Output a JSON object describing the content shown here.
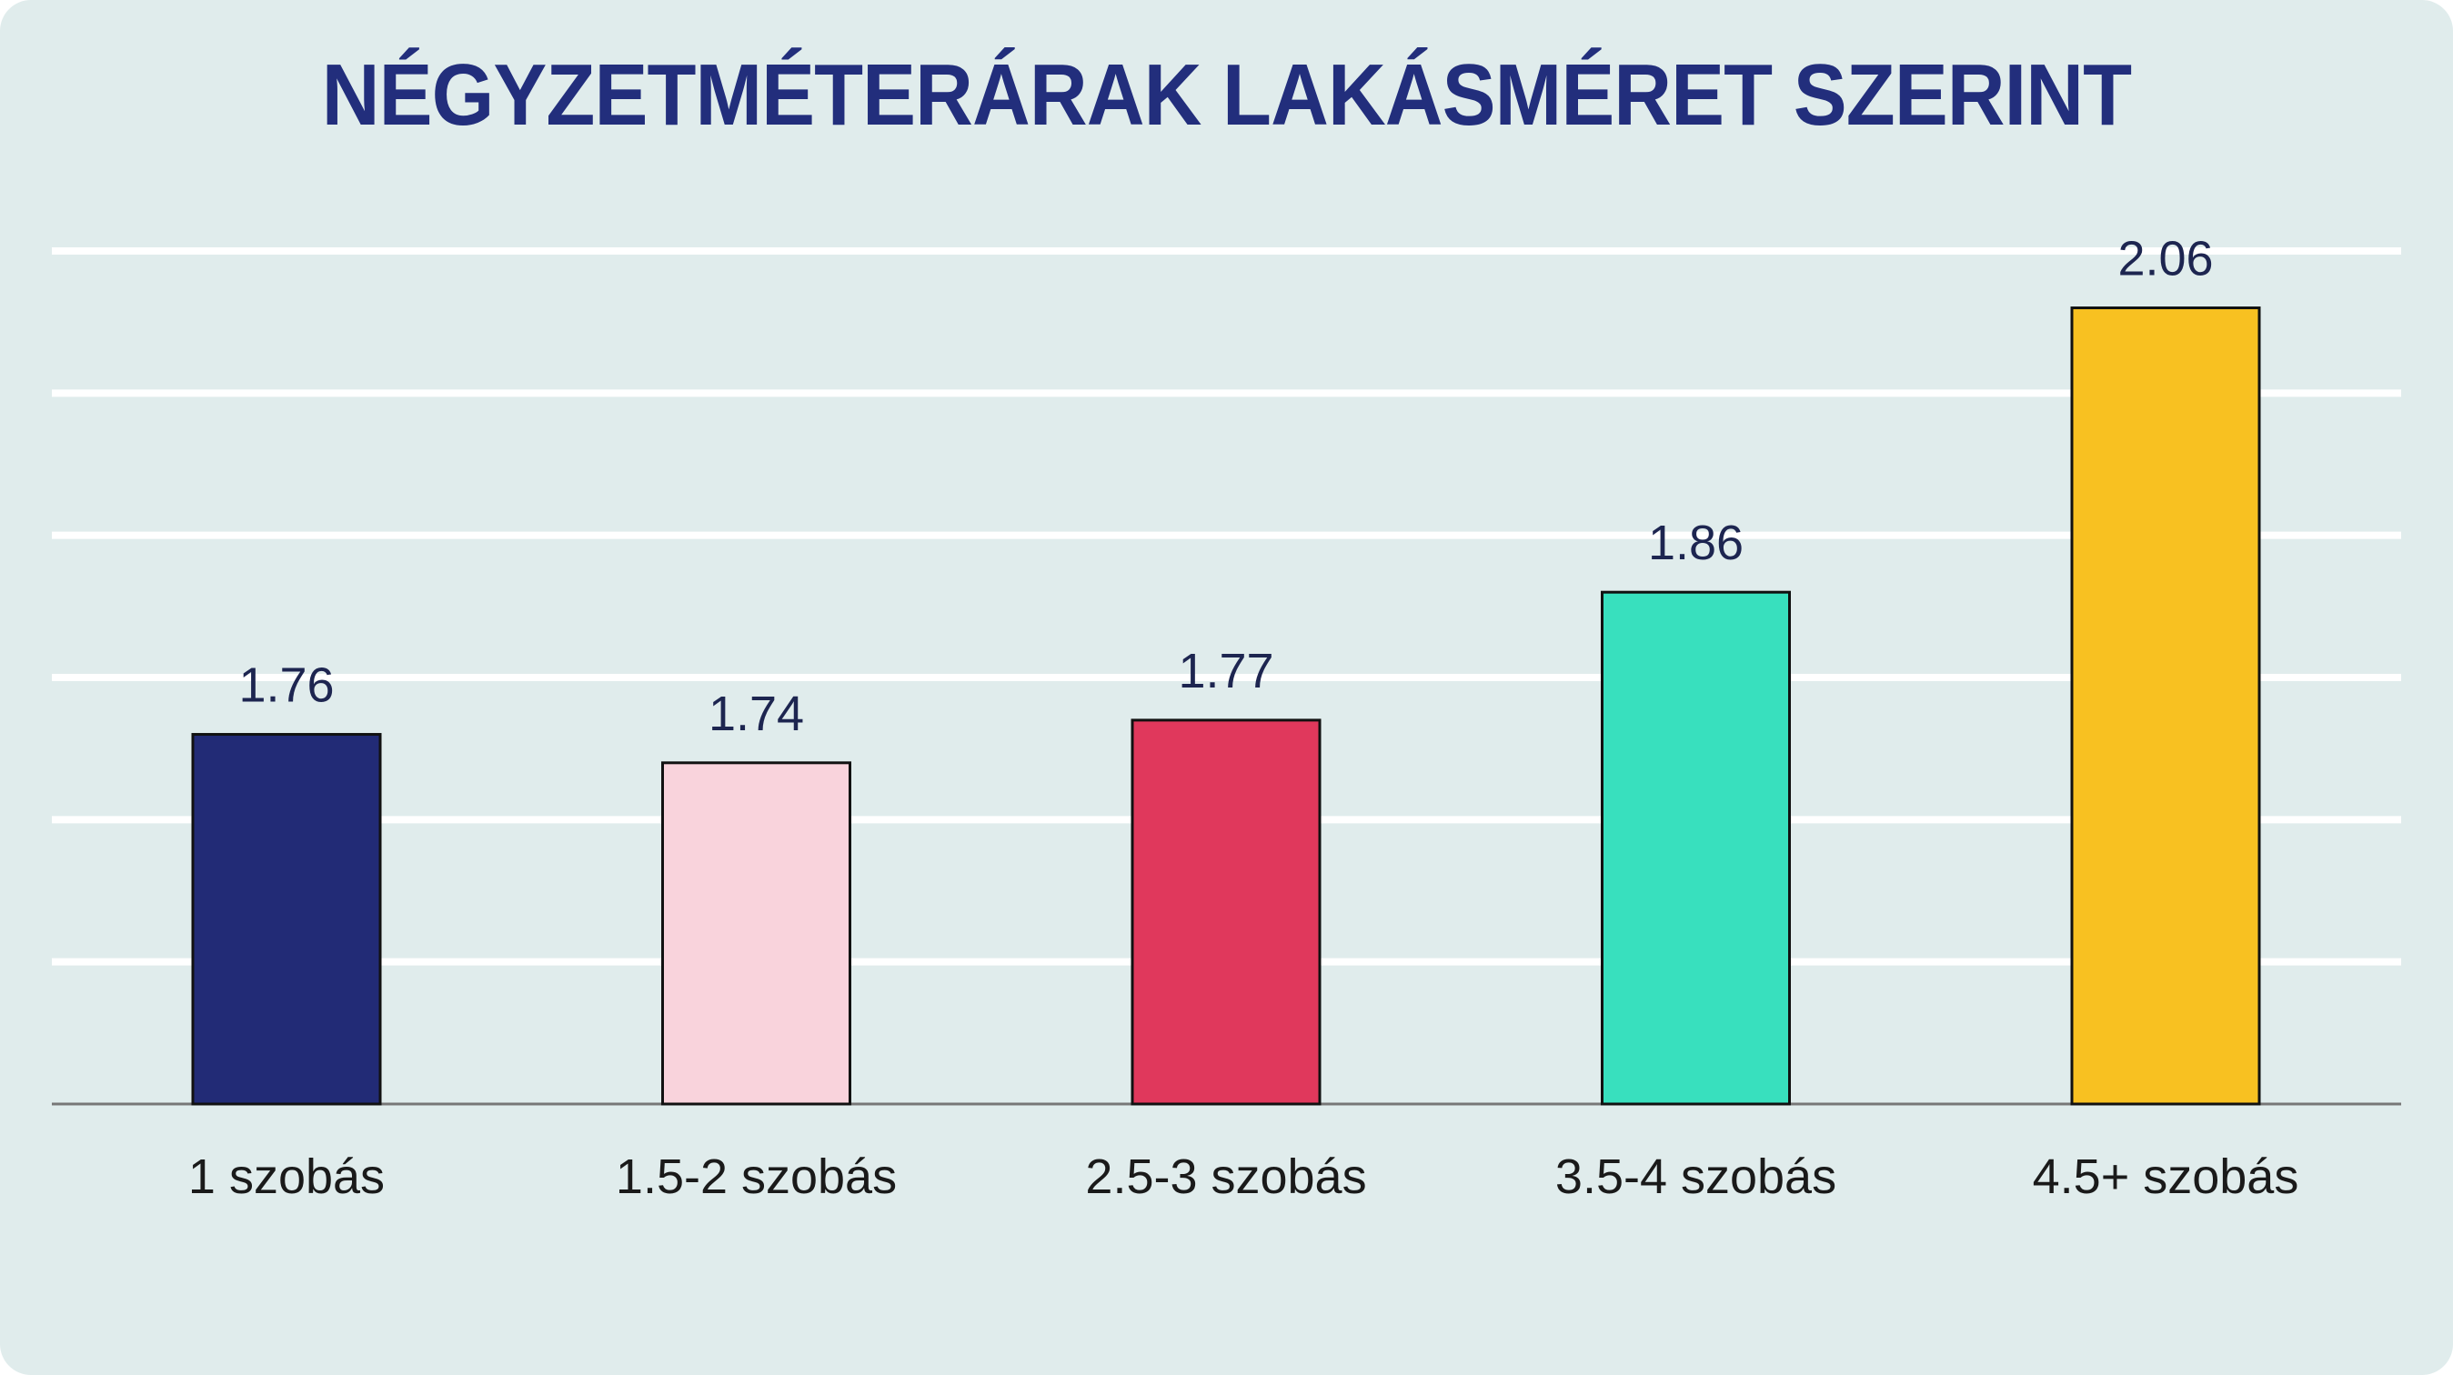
{
  "chart_data": {
    "type": "bar",
    "title": "NÉGYZETMÉTERÁRAK LAKÁSMÉRET SZERINT",
    "xlabel": "",
    "ylabel": "",
    "categories": [
      "1 szobás",
      "1.5-2 szobás",
      "2.5-3 szobás",
      "3.5-4 szobás",
      "4.5+ szobás"
    ],
    "values": [
      1.76,
      1.74,
      1.77,
      1.86,
      2.06
    ],
    "value_labels": [
      "1.76",
      "1.74",
      "1.77",
      "1.86",
      "2.06"
    ],
    "colors": [
      "#222b76",
      "#f9d3dc",
      "#e0385c",
      "#38e0be",
      "#f8c121"
    ],
    "ylim": [
      1.5,
      2.1
    ],
    "gridlines": [
      1.6,
      1.7,
      1.8,
      1.9,
      2.0,
      2.1
    ],
    "grid": true,
    "legend": "none"
  },
  "style": {
    "background": "#e0ecec",
    "title_color": "#222e7c",
    "gridline_color": "#ffffff",
    "baseline_color": "#777777"
  }
}
